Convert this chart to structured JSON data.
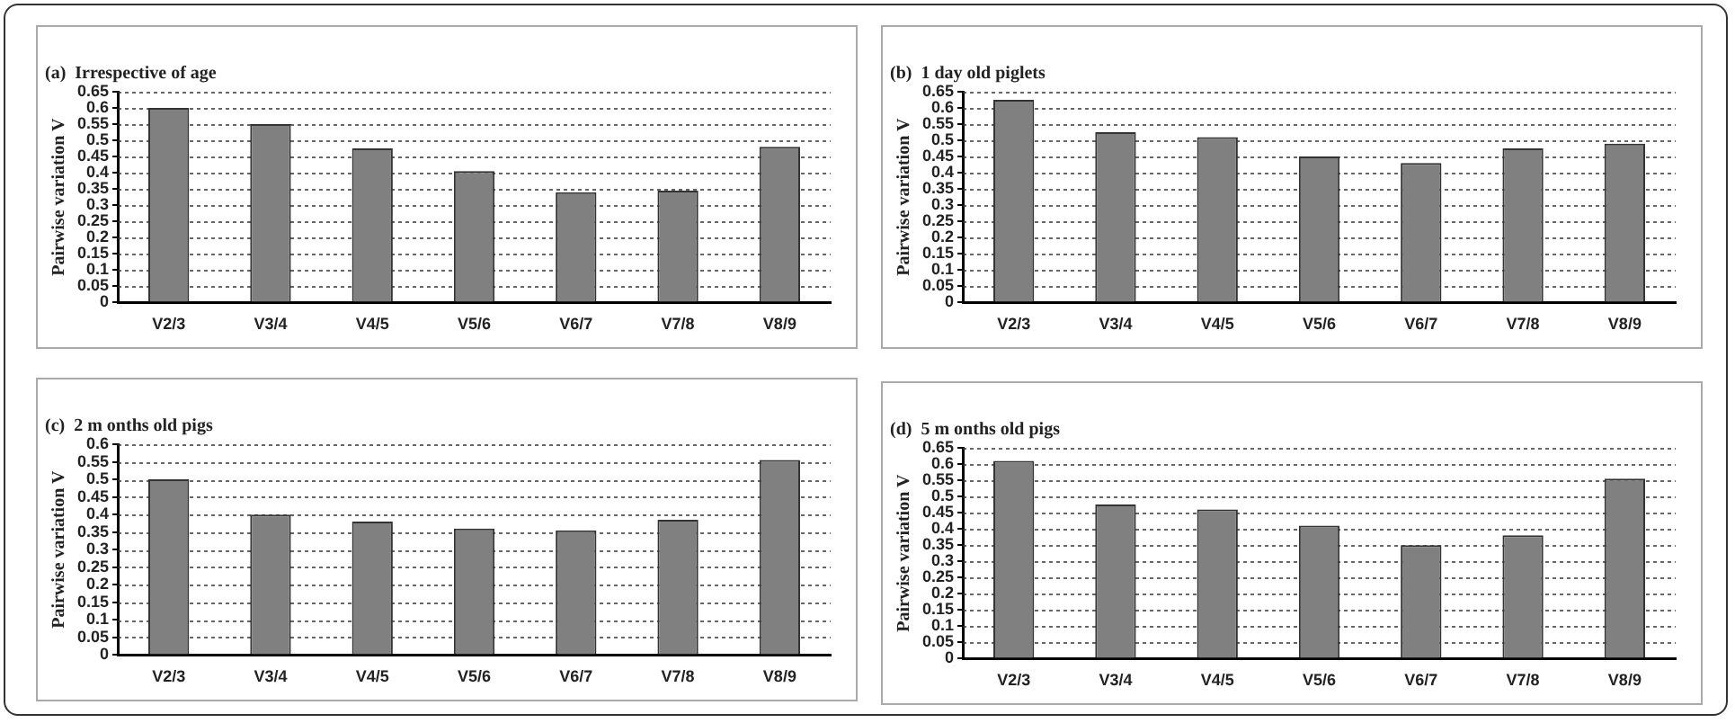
{
  "chart_data": [
    {
      "type": "bar",
      "title": "(a)  Irrespective of age",
      "ylabel": "Pairwise variation V",
      "categories": [
        "V2/3",
        "V3/4",
        "V4/5",
        "V5/6",
        "V6/7",
        "V7/8",
        "V8/9"
      ],
      "values": [
        0.6,
        0.55,
        0.475,
        0.405,
        0.34,
        0.345,
        0.48
      ],
      "color": "#808080",
      "ylim": [
        0,
        0.65
      ],
      "yticks": [
        0,
        0.05,
        0.1,
        0.15,
        0.2,
        0.25,
        0.3,
        0.35,
        0.4,
        0.45,
        0.5,
        0.55,
        0.6,
        0.65
      ],
      "grid": "y"
    },
    {
      "type": "bar",
      "title": "(b)  1 day old piglets",
      "ylabel": "Pairwise variation V",
      "categories": [
        "V2/3",
        "V3/4",
        "V4/5",
        "V5/6",
        "V6/7",
        "V7/8",
        "V8/9"
      ],
      "values": [
        0.625,
        0.525,
        0.51,
        0.45,
        0.43,
        0.475,
        0.49
      ],
      "color": "#808080",
      "ylim": [
        0,
        0.65
      ],
      "yticks": [
        0,
        0.05,
        0.1,
        0.15,
        0.2,
        0.25,
        0.3,
        0.35,
        0.4,
        0.45,
        0.5,
        0.55,
        0.6,
        0.65
      ],
      "grid": "y"
    },
    {
      "type": "bar",
      "title": "(c)  2 m onths old pigs",
      "ylabel": "Pairwise variation V",
      "categories": [
        "V2/3",
        "V3/4",
        "V4/5",
        "V5/6",
        "V6/7",
        "V7/8",
        "V8/9"
      ],
      "values": [
        0.5,
        0.4,
        0.38,
        0.36,
        0.355,
        0.385,
        0.555
      ],
      "color": "#808080",
      "ylim": [
        0,
        0.6
      ],
      "yticks": [
        0,
        0.05,
        0.1,
        0.15,
        0.2,
        0.25,
        0.3,
        0.35,
        0.4,
        0.45,
        0.5,
        0.55,
        0.6
      ],
      "grid": "y"
    },
    {
      "type": "bar",
      "title": "(d)  5 m onths old pigs",
      "ylabel": "Pairwise variation V",
      "categories": [
        "V2/3",
        "V3/4",
        "V4/5",
        "V5/6",
        "V6/7",
        "V7/8",
        "V8/9"
      ],
      "values": [
        0.61,
        0.475,
        0.46,
        0.41,
        0.35,
        0.38,
        0.555
      ],
      "color": "#808080",
      "ylim": [
        0,
        0.65
      ],
      "yticks": [
        0,
        0.05,
        0.1,
        0.15,
        0.2,
        0.25,
        0.3,
        0.35,
        0.4,
        0.45,
        0.5,
        0.55,
        0.6,
        0.65
      ],
      "grid": "y"
    }
  ]
}
